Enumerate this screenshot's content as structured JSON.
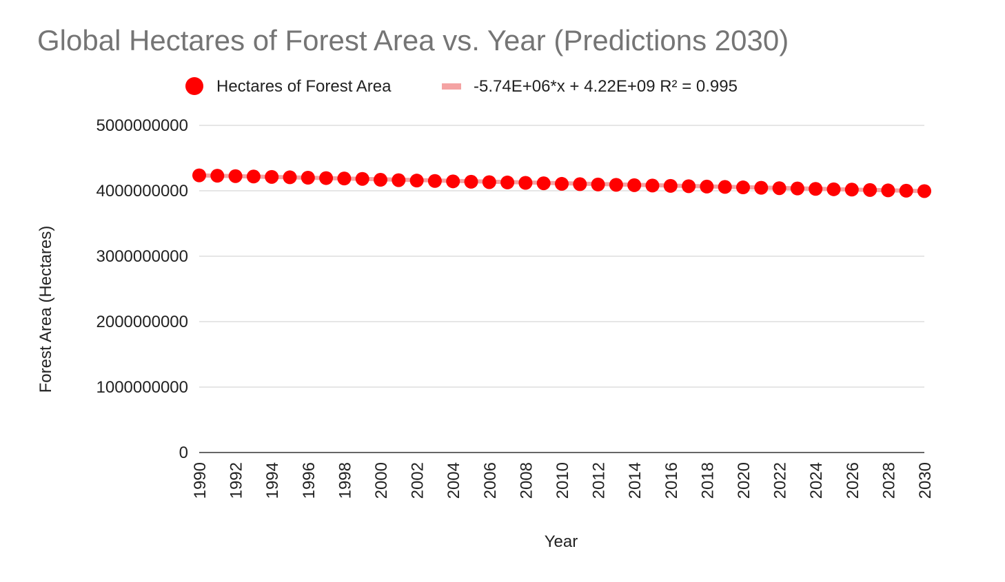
{
  "chart_data": {
    "type": "scatter",
    "title": "Global Hectares of Forest Area vs. Year (Predictions 2030)",
    "xlabel": "Year",
    "ylabel": "Forest Area (Hectares)",
    "xlim": [
      1990,
      2030
    ],
    "ylim": [
      0,
      5000000000
    ],
    "yticks": [
      "0",
      "1000000000",
      "2000000000",
      "3000000000",
      "4000000000",
      "5000000000"
    ],
    "xticks": [
      "1990",
      "1992",
      "1994",
      "1996",
      "1998",
      "2000",
      "2002",
      "2004",
      "2006",
      "2008",
      "2010",
      "2012",
      "2014",
      "2016",
      "2018",
      "2020",
      "2022",
      "2024",
      "2026",
      "2028",
      "2030"
    ],
    "grid": true,
    "legend_position": "top",
    "series": [
      {
        "name": "Hectares of Forest Area",
        "color": "#ff0000",
        "x": [
          1990,
          1991,
          1992,
          1993,
          1994,
          1995,
          1996,
          1997,
          1998,
          1999,
          2000,
          2001,
          2002,
          2003,
          2004,
          2005,
          2006,
          2007,
          2008,
          2009,
          2010,
          2011,
          2012,
          2013,
          2014,
          2015,
          2016,
          2017,
          2018,
          2019,
          2020,
          2021,
          2022,
          2023,
          2024,
          2025,
          2026,
          2027,
          2028,
          2029,
          2030
        ],
        "values": [
          4236000000,
          4230000000,
          4224000000,
          4218000000,
          4212000000,
          4206000000,
          4200000000,
          4194000000,
          4188000000,
          4182000000,
          4168000000,
          4162000000,
          4156000000,
          4150000000,
          4144000000,
          4138000000,
          4132000000,
          4127000000,
          4121000000,
          4115000000,
          4106000000,
          4101000000,
          4096000000,
          4091000000,
          4086000000,
          4080000000,
          4075000000,
          4070000000,
          4064000000,
          4059000000,
          4052000000,
          4046000000,
          4040000000,
          4035000000,
          4029000000,
          4023000000,
          4018000000,
          4012000000,
          4006000000,
          4001000000,
          3995000000
        ]
      }
    ],
    "trendline": {
      "name": "-5.74E+06*x + 4.22E+09 R² = 0.995",
      "color": "#f4a3a3",
      "start": [
        1990,
        4236000000
      ],
      "end": [
        2030,
        3995000000
      ]
    }
  }
}
